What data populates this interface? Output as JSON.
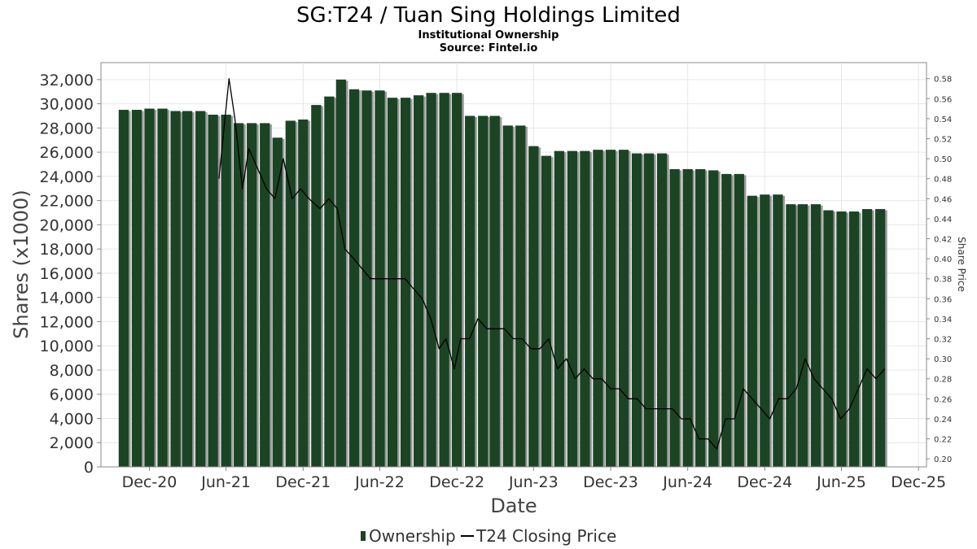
{
  "chart_data": {
    "type": "bar",
    "title": "SG:T24 / Tuan Sing Holdings Limited",
    "subtitle_lines": [
      "Institutional Ownership",
      "Source: Fintel.io"
    ],
    "xlabel": "Date",
    "ylabel": "Shares (x1000)",
    "y2label": "Share Price",
    "ylim": [
      0,
      33400
    ],
    "y_ticks": [
      0,
      2000,
      4000,
      6000,
      8000,
      10000,
      12000,
      14000,
      16000,
      18000,
      20000,
      22000,
      24000,
      26000,
      28000,
      30000,
      32000
    ],
    "y_tick_labels": [
      "0",
      "2,000",
      "4,000",
      "6,000",
      "8,000",
      "10,000",
      "12,000",
      "14,000",
      "16,000",
      "18,000",
      "20,000",
      "22,000",
      "24,000",
      "26,000",
      "28,000",
      "30,000",
      "32,000"
    ],
    "y2lim": [
      0.192,
      0.596
    ],
    "y2_ticks": [
      0.2,
      0.22,
      0.24,
      0.26,
      0.28,
      0.3,
      0.32,
      0.34,
      0.36,
      0.38,
      0.4,
      0.42,
      0.44,
      0.46,
      0.48,
      0.5,
      0.52,
      0.54,
      0.56,
      0.58
    ],
    "y2_tick_labels": [
      "0.20",
      "0.22",
      "0.24",
      "0.26",
      "0.28",
      "0.30",
      "0.32",
      "0.34",
      "0.36",
      "0.38",
      "0.40",
      "0.42",
      "0.44",
      "0.46",
      "0.48",
      "0.50",
      "0.52",
      "0.54",
      "0.56",
      "0.58"
    ],
    "xlim": [
      "2020-08-08",
      "2025-12-20"
    ],
    "x_ticks": [
      "2020-12-01",
      "2021-06-01",
      "2021-12-01",
      "2022-06-01",
      "2022-12-01",
      "2023-06-01",
      "2023-12-01",
      "2024-06-01",
      "2024-12-01",
      "2025-06-01",
      "2025-12-01"
    ],
    "x_tick_labels": [
      "Dec-20",
      "Jun-21",
      "Dec-21",
      "Jun-22",
      "Dec-22",
      "Jun-23",
      "Dec-23",
      "Jun-24",
      "Dec-24",
      "Jun-25",
      "Dec-25"
    ],
    "grid": true,
    "legend_position": "bottom-center",
    "colors": {
      "bar": "#1b4424",
      "bar_shadow": "#9a9a9a",
      "line": "#000000",
      "grid": "#e6e6e6",
      "axis": "#888888"
    },
    "series": [
      {
        "name": "Ownership",
        "type": "bar",
        "axis": "left",
        "dates": [
          "2020-10-01",
          "2020-11-01",
          "2020-12-01",
          "2021-01-01",
          "2021-02-01",
          "2021-03-01",
          "2021-04-01",
          "2021-05-01",
          "2021-06-01",
          "2021-07-01",
          "2021-08-01",
          "2021-09-01",
          "2021-10-01",
          "2021-11-01",
          "2021-12-01",
          "2022-01-01",
          "2022-02-01",
          "2022-03-01",
          "2022-04-01",
          "2022-05-01",
          "2022-06-01",
          "2022-07-01",
          "2022-08-01",
          "2022-09-01",
          "2022-10-01",
          "2022-11-01",
          "2022-12-01",
          "2023-01-01",
          "2023-02-01",
          "2023-03-01",
          "2023-04-01",
          "2023-05-01",
          "2023-06-01",
          "2023-07-01",
          "2023-08-01",
          "2023-09-01",
          "2023-10-01",
          "2023-11-01",
          "2023-12-01",
          "2024-01-01",
          "2024-02-01",
          "2024-03-01",
          "2024-04-01",
          "2024-05-01",
          "2024-06-01",
          "2024-07-01",
          "2024-08-01",
          "2024-09-01",
          "2024-10-01",
          "2024-11-01",
          "2024-12-01",
          "2025-01-01",
          "2025-02-01",
          "2025-03-01",
          "2025-04-01",
          "2025-05-01",
          "2025-06-01",
          "2025-07-01",
          "2025-08-01",
          "2025-09-01"
        ],
        "values": [
          29500,
          29500,
          29600,
          29600,
          29400,
          29400,
          29400,
          29100,
          29100,
          28400,
          28400,
          28400,
          27200,
          28600,
          28700,
          29900,
          30600,
          32000,
          31200,
          31100,
          31100,
          30500,
          30500,
          30700,
          30900,
          30900,
          30900,
          29000,
          29000,
          29000,
          28200,
          28200,
          26500,
          25700,
          26100,
          26100,
          26100,
          26200,
          26200,
          26200,
          25900,
          25900,
          25900,
          24600,
          24600,
          24600,
          24500,
          24200,
          24200,
          22400,
          22500,
          22500,
          21700,
          21700,
          21700,
          21200,
          21100,
          21100,
          21300,
          21300
        ]
      },
      {
        "name": "T24 Closing Price",
        "type": "line",
        "axis": "right",
        "dates": [
          "2021-05-15",
          "2021-06-08",
          "2021-06-22",
          "2021-07-10",
          "2021-07-25",
          "2021-08-15",
          "2021-09-05",
          "2021-09-25",
          "2021-10-15",
          "2021-11-05",
          "2021-11-25",
          "2021-12-15",
          "2022-01-10",
          "2022-01-31",
          "2022-02-20",
          "2022-03-10",
          "2022-03-31",
          "2022-04-20",
          "2022-05-10",
          "2022-05-31",
          "2022-06-20",
          "2022-07-10",
          "2022-07-31",
          "2022-08-20",
          "2022-09-10",
          "2022-09-30",
          "2022-10-20",
          "2022-11-05",
          "2022-11-25",
          "2022-12-10",
          "2022-12-31",
          "2023-01-20",
          "2023-02-10",
          "2023-03-03",
          "2023-03-24",
          "2023-04-14",
          "2023-05-05",
          "2023-05-26",
          "2023-06-16",
          "2023-07-07",
          "2023-07-28",
          "2023-08-18",
          "2023-09-08",
          "2023-09-29",
          "2023-10-20",
          "2023-11-10",
          "2023-12-01",
          "2023-12-22",
          "2024-01-12",
          "2024-02-02",
          "2024-02-23",
          "2024-03-15",
          "2024-04-05",
          "2024-04-26",
          "2024-05-17",
          "2024-06-07",
          "2024-06-28",
          "2024-07-19",
          "2024-08-09",
          "2024-08-30",
          "2024-09-20",
          "2024-10-11",
          "2024-11-01",
          "2024-11-22",
          "2024-12-13",
          "2025-01-03",
          "2025-01-24",
          "2025-02-14",
          "2025-03-07",
          "2025-03-28",
          "2025-04-18",
          "2025-05-09",
          "2025-05-30",
          "2025-06-20",
          "2025-07-11",
          "2025-08-01",
          "2025-08-22",
          "2025-09-12"
        ],
        "values": [
          0.48,
          0.58,
          0.54,
          0.47,
          0.51,
          0.49,
          0.47,
          0.46,
          0.5,
          0.46,
          0.47,
          0.46,
          0.45,
          0.46,
          0.45,
          0.41,
          0.4,
          0.39,
          0.38,
          0.38,
          0.38,
          0.38,
          0.38,
          0.37,
          0.36,
          0.34,
          0.31,
          0.32,
          0.29,
          0.32,
          0.32,
          0.34,
          0.33,
          0.33,
          0.33,
          0.32,
          0.32,
          0.31,
          0.31,
          0.32,
          0.29,
          0.3,
          0.28,
          0.29,
          0.28,
          0.28,
          0.27,
          0.27,
          0.26,
          0.26,
          0.25,
          0.25,
          0.25,
          0.25,
          0.24,
          0.24,
          0.22,
          0.22,
          0.21,
          0.24,
          0.24,
          0.27,
          0.26,
          0.25,
          0.24,
          0.26,
          0.26,
          0.27,
          0.3,
          0.28,
          0.27,
          0.26,
          0.24,
          0.25,
          0.27,
          0.29,
          0.28,
          0.29
        ]
      }
    ]
  }
}
